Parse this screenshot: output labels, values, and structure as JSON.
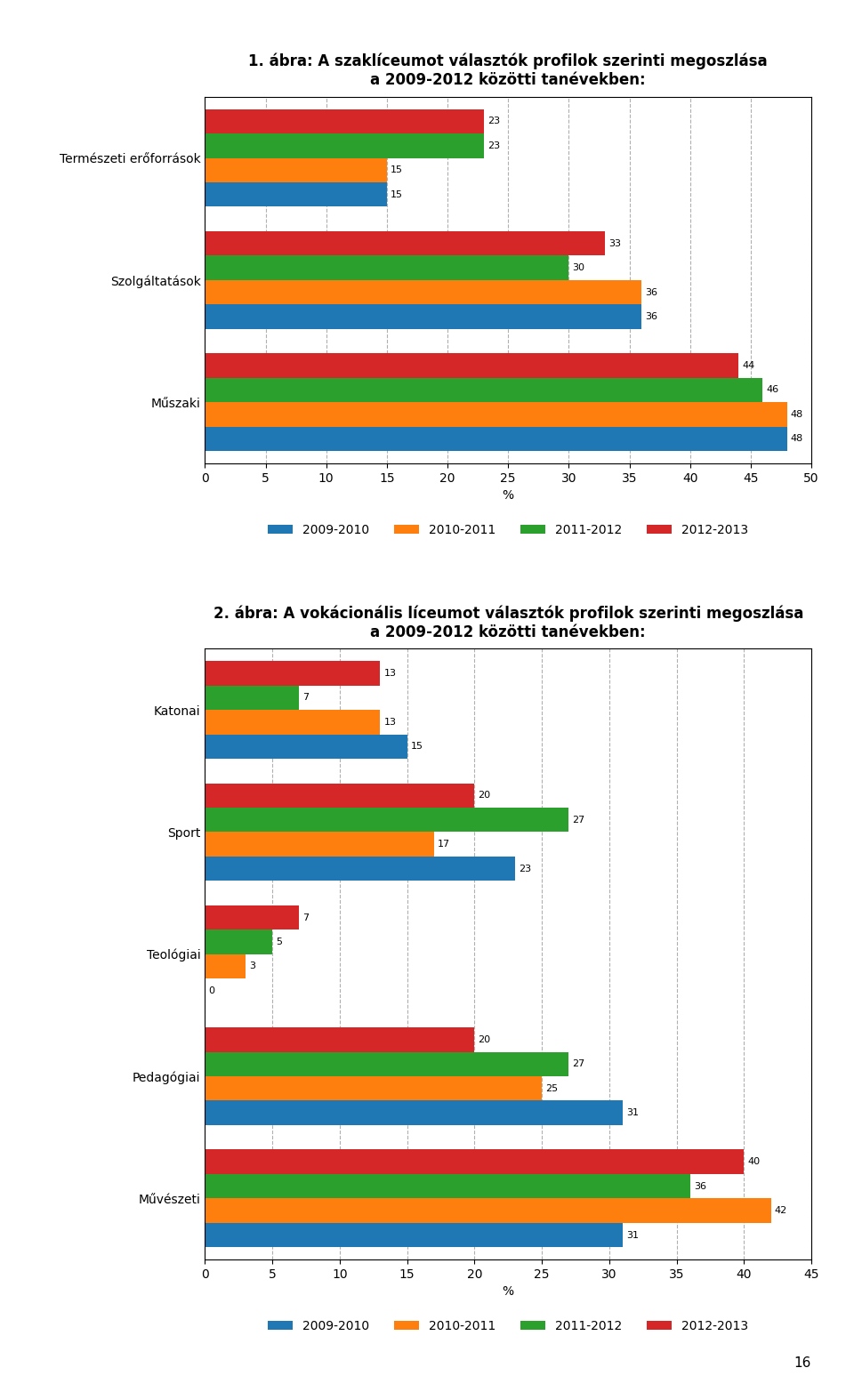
{
  "chart_data": [
    {
      "type": "bar",
      "orientation": "horizontal",
      "title": "1. ábra: A szaklíceumot választók profilok szerinti megoszlása\na 2009-2012 közötti tanévekben:",
      "categories": [
        "Műszaki",
        "Szolgáltatások",
        "Természeti erőforrások"
      ],
      "series": [
        {
          "name": "2009-2010",
          "values": [
            48,
            36,
            15
          ]
        },
        {
          "name": "2010-2011",
          "values": [
            48,
            36,
            15
          ]
        },
        {
          "name": "2011-2012",
          "values": [
            46,
            30,
            23
          ]
        },
        {
          "name": "2012-2013",
          "values": [
            44,
            33,
            23
          ]
        }
      ],
      "xlabel": "%",
      "xlim": [
        0,
        50
      ],
      "xticks": [
        0,
        5,
        10,
        15,
        20,
        25,
        30,
        35,
        40,
        45,
        50
      ],
      "grid": true,
      "data_labels": true,
      "legend": "upper center"
    },
    {
      "type": "bar",
      "orientation": "horizontal",
      "title": "2. ábra: A vokácionális líceumot választók profilok szerinti megoszlása\na 2009-2012 közötti tanévekben:",
      "categories": [
        "Művészeti",
        "Pedagógiai",
        "Teológiai",
        "Sport",
        "Katonai"
      ],
      "series": [
        {
          "name": "2009-2010",
          "values": [
            31,
            31,
            0,
            23,
            15
          ]
        },
        {
          "name": "2010-2011",
          "values": [
            42,
            25,
            3,
            17,
            13
          ]
        },
        {
          "name": "2011-2012",
          "values": [
            36,
            27,
            5,
            27,
            7
          ]
        },
        {
          "name": "2012-2013",
          "values": [
            40,
            20,
            7,
            20,
            13
          ]
        }
      ],
      "xlabel": "%",
      "xlim": [
        0,
        45
      ],
      "xticks": [
        0,
        5,
        10,
        15,
        20,
        25,
        30,
        35,
        40,
        45
      ],
      "grid": true,
      "data_labels": true,
      "legend": "upper center",
      "annotations": [
        "16"
      ]
    }
  ]
}
